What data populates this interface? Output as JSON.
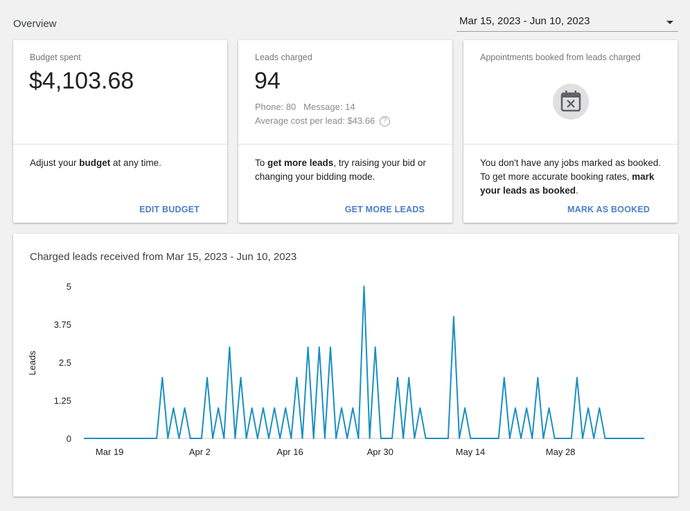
{
  "header": {
    "title": "Overview",
    "date_range": "Mar 15, 2023 - Jun 10, 2023"
  },
  "cards": {
    "budget": {
      "label": "Budget spent",
      "value": "$4,103.68",
      "body_pre": "Adjust your ",
      "body_bold": "budget",
      "body_post": " at any time.",
      "action": "EDIT BUDGET"
    },
    "leads": {
      "label": "Leads charged",
      "value": "94",
      "phone_label": "Phone: 80",
      "message_label": "Message: 14",
      "avg_cost": "Average cost per lead: $43.66",
      "body_pre": "To ",
      "body_bold": "get more leads",
      "body_post": ", try raising your bid or changing your bidding mode.",
      "action": "GET MORE LEADS"
    },
    "appointments": {
      "label": "Appointments booked from leads charged",
      "icon": "calendar-x-icon",
      "body_pre": "You don't have any jobs marked as booked. To get more accurate booking rates, ",
      "body_bold": "mark your leads as booked",
      "body_post": ".",
      "action": "MARK AS BOOKED"
    }
  },
  "chart_data": {
    "type": "line",
    "title": "Charged leads received from Mar 15, 2023 - Jun 10, 2023",
    "xlabel": "",
    "ylabel": "Leads",
    "ylim": [
      0,
      5
    ],
    "yticks": [
      "0",
      "1.25",
      "2.5",
      "3.75",
      "5"
    ],
    "ytick_values": [
      0,
      1.25,
      2.5,
      3.75,
      5
    ],
    "xticks": [
      {
        "label": "Mar 19",
        "day": 19
      },
      {
        "label": "Apr 2",
        "day": 33
      },
      {
        "label": "Apr 16",
        "day": 47
      },
      {
        "label": "Apr 30",
        "day": 61
      },
      {
        "label": "May 14",
        "day": 75
      },
      {
        "label": "May 28",
        "day": 89
      }
    ],
    "x_start_day": 15,
    "x_end_day": 102,
    "color": "#1a8fc2",
    "series": [
      {
        "name": "",
        "values": [
          0,
          0,
          0,
          0,
          0,
          0,
          0,
          0,
          0,
          0,
          0,
          0,
          0,
          0,
          2,
          0,
          1,
          0,
          1,
          0,
          0,
          0,
          2,
          0,
          1,
          0,
          3,
          0,
          2,
          0,
          1,
          0,
          1,
          0,
          1,
          0,
          1,
          0,
          2,
          0,
          3,
          0,
          3,
          0,
          3,
          0,
          1,
          0,
          1,
          0,
          5,
          0,
          3,
          0,
          0,
          0,
          2,
          0,
          2,
          0,
          1,
          0,
          0,
          0,
          0,
          0,
          4,
          0,
          1,
          0,
          0,
          0,
          0,
          0,
          0,
          2,
          0,
          1,
          0,
          1,
          0,
          2,
          0,
          1,
          0,
          0,
          0,
          0,
          2,
          0,
          1,
          0,
          1,
          0,
          0,
          0,
          0,
          0,
          0,
          0,
          0
        ]
      }
    ]
  }
}
